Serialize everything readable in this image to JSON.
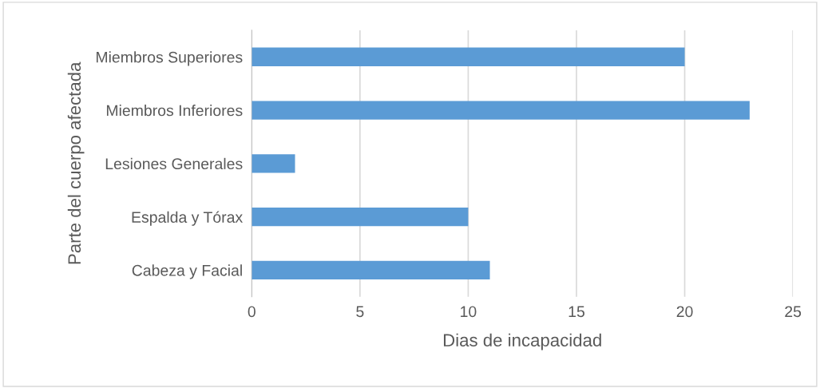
{
  "chart_data": {
    "type": "bar",
    "orientation": "horizontal",
    "xlabel": "Dias de incapacidad",
    "ylabel": "Parte del cuerpo afectada",
    "categories": [
      "Miembros Superiores",
      "Miembros Inferiores",
      "Lesiones Generales",
      "Espalda y Tórax",
      "Cabeza y Facial"
    ],
    "values": [
      20,
      23,
      2,
      10,
      11
    ],
    "color": "#5b9bd5",
    "xlim": [
      0,
      25
    ],
    "xticks": [
      0,
      5,
      10,
      15,
      20,
      25
    ],
    "grid": "x"
  }
}
